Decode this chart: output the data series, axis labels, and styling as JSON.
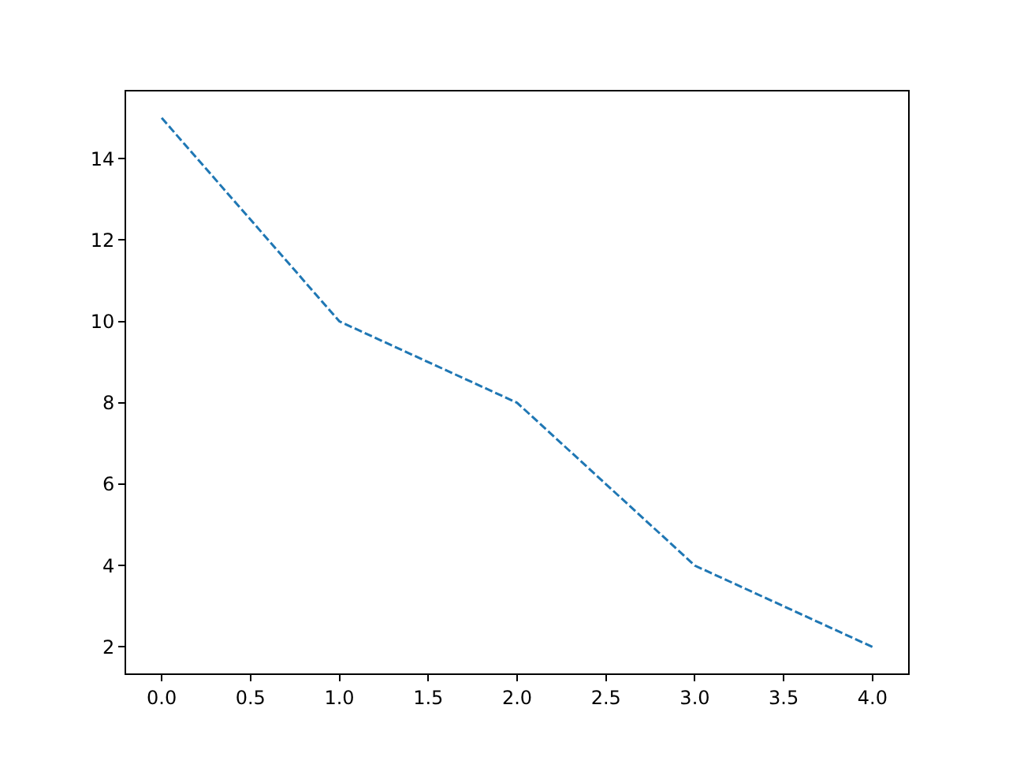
{
  "chart_data": {
    "type": "line",
    "x": [
      0,
      1,
      2,
      3,
      4
    ],
    "series": [
      {
        "color": "#1f77b4",
        "values": [
          15,
          10,
          8,
          4,
          2
        ]
      }
    ],
    "xlim": [
      -0.2,
      4.2
    ],
    "xticks": [
      {
        "value": 0,
        "label": "0.0"
      },
      {
        "value": 0.5,
        "label": "0.5"
      },
      {
        "value": 1,
        "label": "1.0"
      },
      {
        "value": 1.5,
        "label": "1.5"
      },
      {
        "value": 2,
        "label": "2.0"
      },
      {
        "value": 2.5,
        "label": "2.5"
      },
      {
        "value": 3,
        "label": "3.0"
      },
      {
        "value": 3.5,
        "label": "3.5"
      },
      {
        "value": 4,
        "label": "4.0"
      }
    ],
    "ylim": [
      1.35,
      15.65
    ],
    "yticks": [
      2,
      4,
      6,
      8,
      10,
      12,
      14
    ],
    "marker": "none",
    "line_style": "dashed"
  }
}
